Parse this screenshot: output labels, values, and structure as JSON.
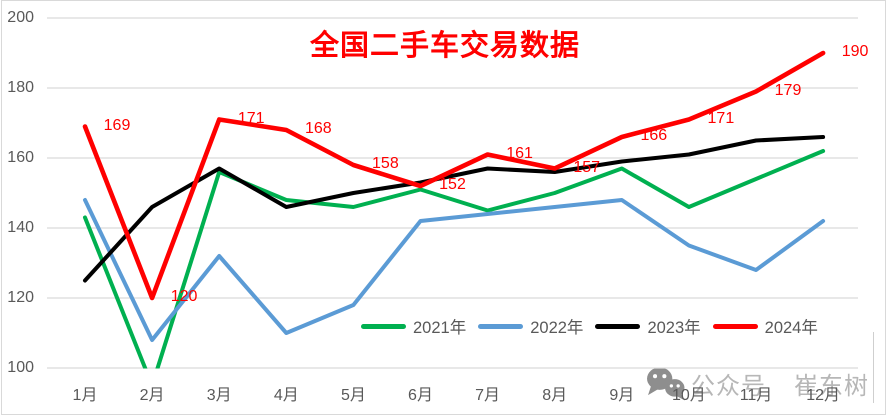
{
  "title": {
    "text": "全国二手车交易数据",
    "color": "#FF0000"
  },
  "watermark": {
    "icon": "wechat-icon",
    "label_left": "公众号",
    "label_right": "崔东树"
  },
  "colors": {
    "gridline": "#D9D9D9",
    "axis_text": "#595959",
    "data_label": "#FF0000",
    "border": "#D9D9D9",
    "watermark_text": "#B7B7B7",
    "watermark_icon": "#8E8E8E"
  },
  "chart_data": {
    "type": "line",
    "title": "全国二手车交易数据",
    "categories": [
      "1月",
      "2月",
      "3月",
      "4月",
      "5月",
      "6月",
      "7月",
      "8月",
      "9月",
      "10月",
      "11月",
      "12月"
    ],
    "series": [
      {
        "name": "2021年",
        "color": "#00B050",
        "data_labels": false,
        "values": [
          143,
          95,
          156,
          148,
          146,
          151,
          145,
          150,
          157,
          146,
          154,
          162
        ]
      },
      {
        "name": "2022年",
        "color": "#5B9BD5",
        "data_labels": false,
        "values": [
          148,
          108,
          132,
          110,
          118,
          142,
          144,
          146,
          148,
          135,
          128,
          142
        ]
      },
      {
        "name": "2023年",
        "color": "#000000",
        "data_labels": false,
        "values": [
          125,
          146,
          157,
          146,
          150,
          153,
          157,
          156,
          159,
          161,
          165,
          166
        ]
      },
      {
        "name": "2024年",
        "color": "#FF0000",
        "data_labels": true,
        "values": [
          169,
          120,
          171,
          168,
          158,
          152,
          161,
          157,
          166,
          171,
          179,
          190
        ]
      }
    ],
    "xlabel": "",
    "ylabel": "",
    "ylim": [
      100,
      200
    ],
    "yticks": [
      100,
      120,
      140,
      160,
      180,
      200
    ],
    "grid": true,
    "legend_position": "inside-bottom",
    "legend_entries": [
      "2021年",
      "2022年",
      "2023年",
      "2024年"
    ]
  }
}
